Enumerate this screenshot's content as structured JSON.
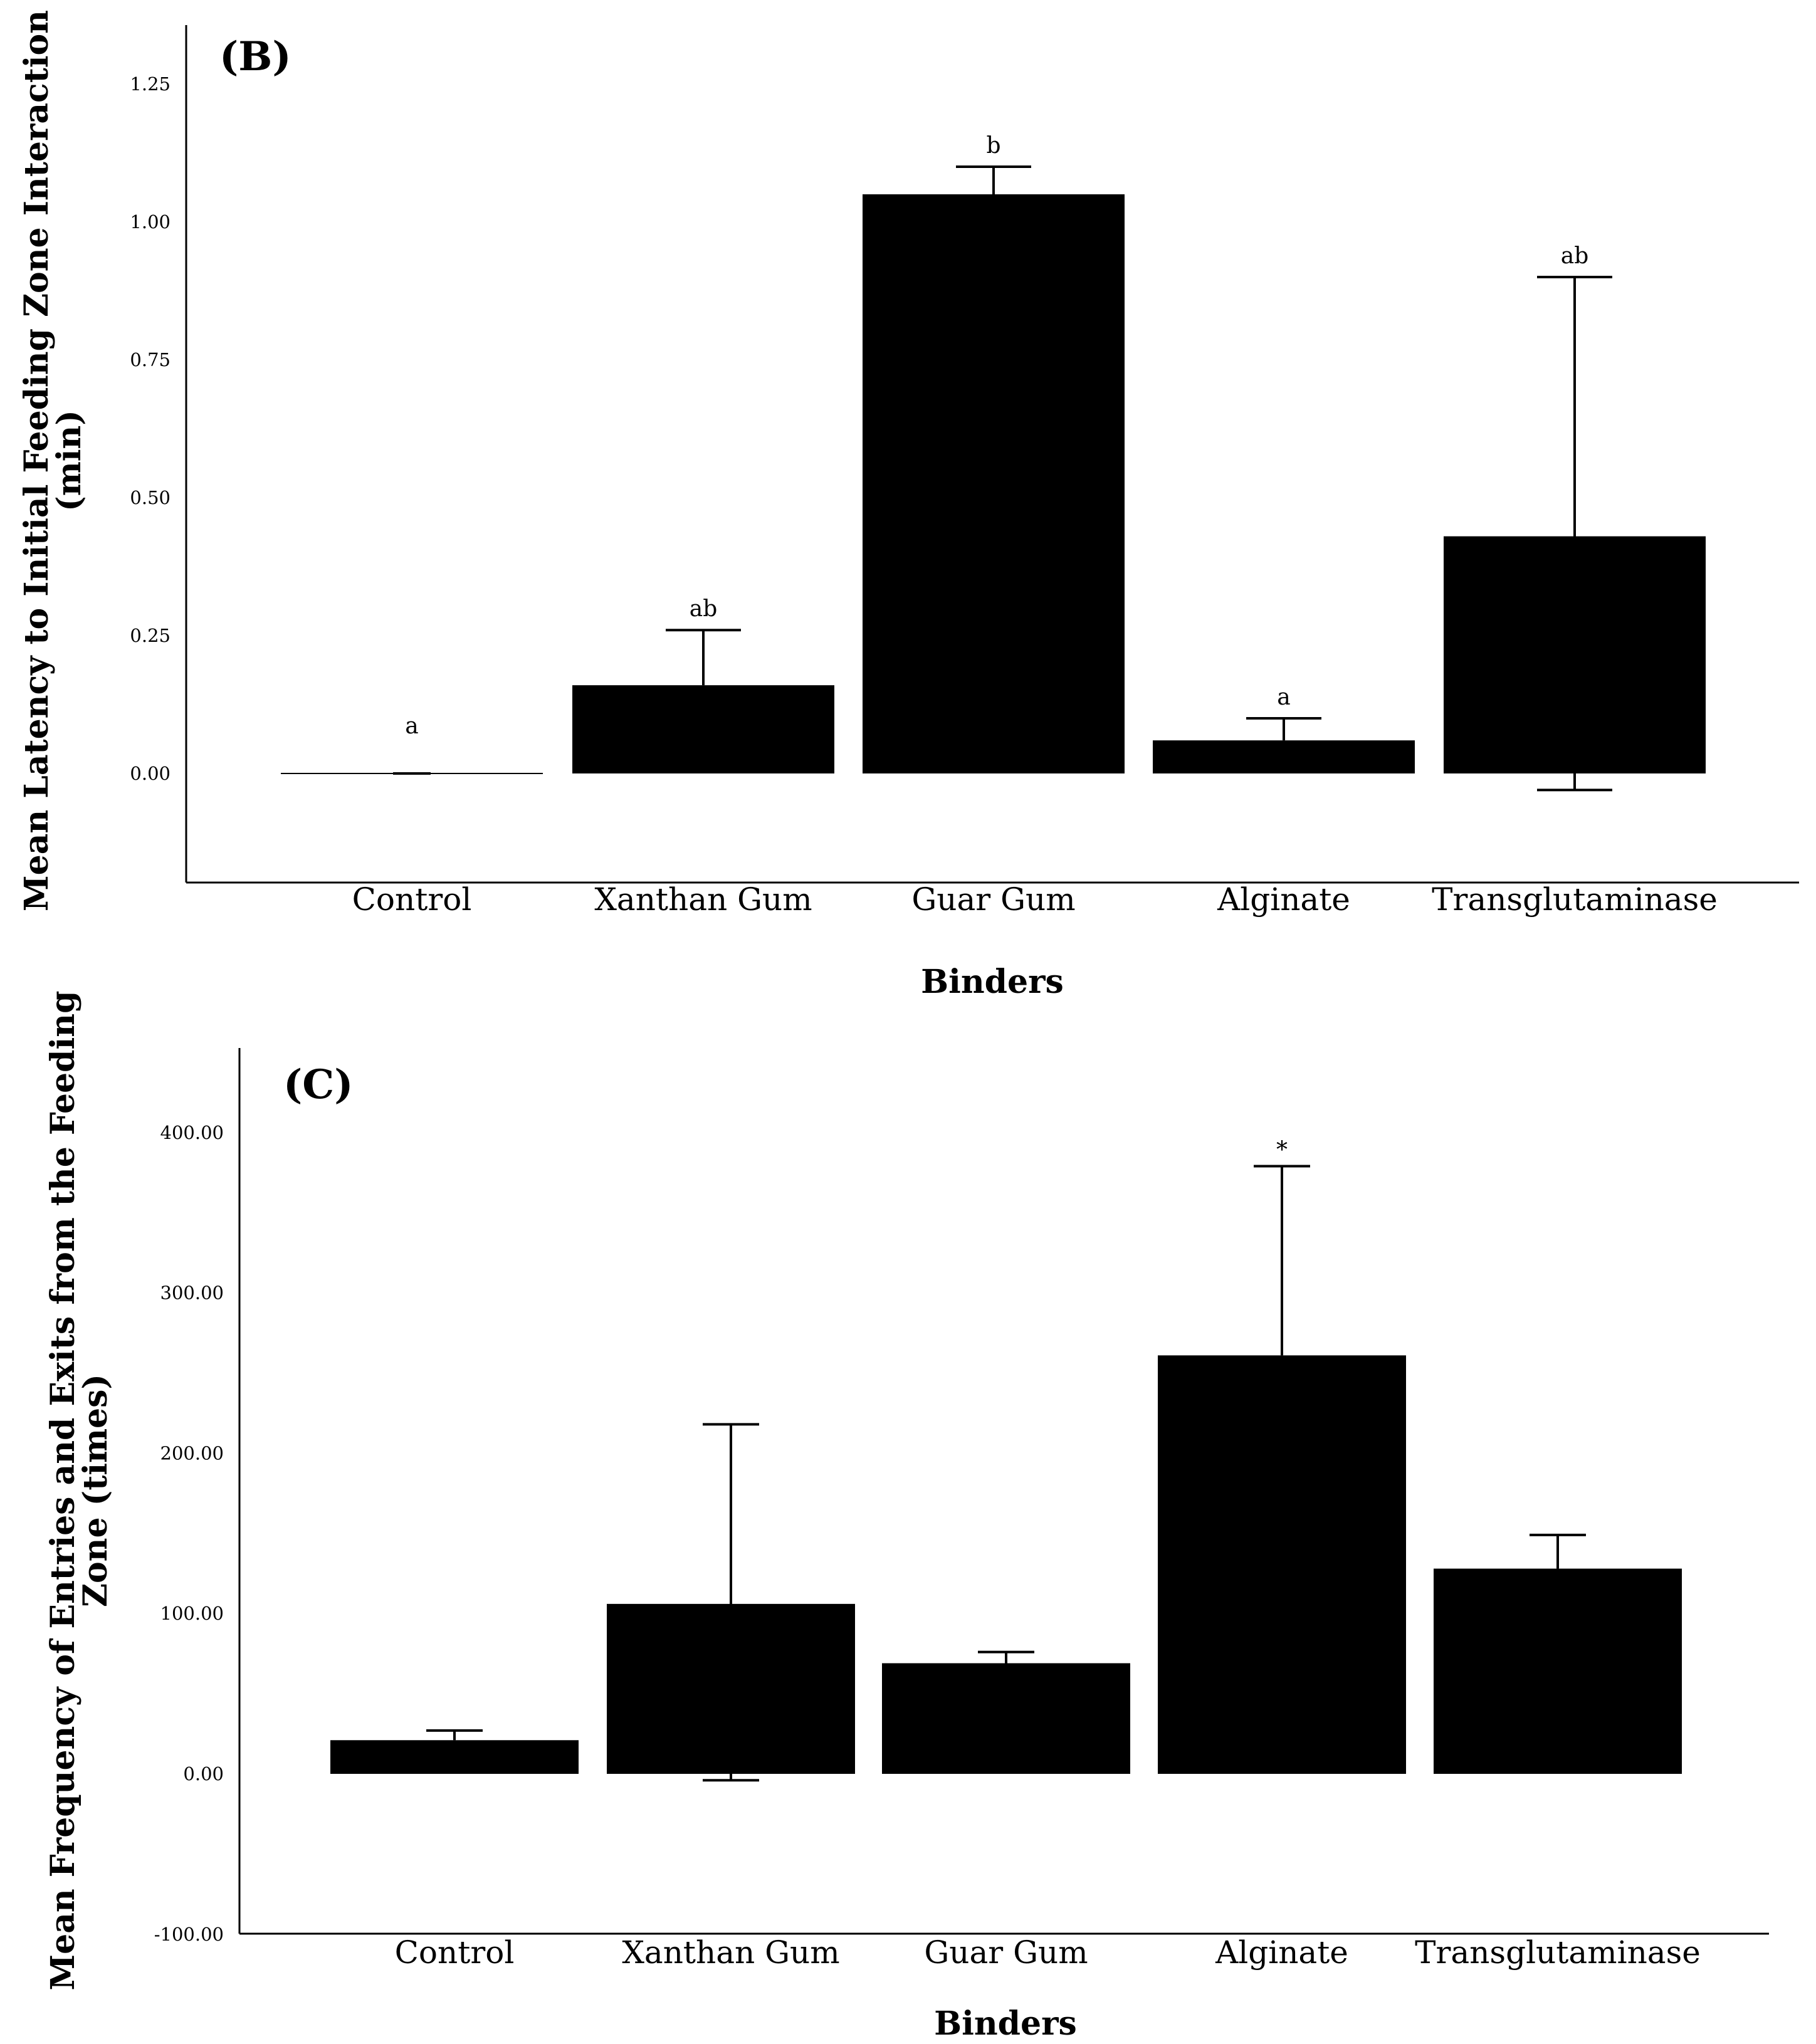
{
  "chart_data": [
    {
      "type": "bar",
      "panel": "(B)",
      "title": "",
      "xlabel": "Binders",
      "ylabel_lines": [
        "Mean Latency to Initial Feeding Zone Interaction",
        "(min)"
      ],
      "categories": [
        "Control",
        "Xanthan Gum",
        "Guar Gum",
        "Alginate",
        "Transglutaminase"
      ],
      "values": [
        0.0,
        0.16,
        1.05,
        0.06,
        0.43
      ],
      "error_upper": [
        0.0,
        0.26,
        1.1,
        0.1,
        0.9
      ],
      "error_lower": [
        0.0,
        0.16,
        1.05,
        0.06,
        -0.03
      ],
      "significance": [
        "a",
        "ab",
        "b",
        "a",
        "ab"
      ],
      "ylim": [
        -0.2,
        1.35
      ],
      "yticks": [
        0.0,
        0.25,
        0.5,
        0.75,
        1.0,
        1.25
      ],
      "ytick_labels": [
        "0.00",
        "0.25",
        "0.50",
        "0.75",
        "1.00",
        "1.25"
      ],
      "bar_color": "#000000",
      "grid": false
    },
    {
      "type": "bar",
      "panel": "(C)",
      "title": "",
      "xlabel": "Binders",
      "ylabel_lines": [
        "Mean Frequency of Entries and Exits from the Feeding",
        "Zone (times)"
      ],
      "categories": [
        "Control",
        "Xanthan Gum",
        "Guar Gum",
        "Alginate",
        "Transglutaminase"
      ],
      "values": [
        21,
        106,
        69,
        261,
        128
      ],
      "error_upper": [
        27,
        218,
        76,
        379,
        149
      ],
      "error_lower": [
        21,
        -4,
        69,
        261,
        128
      ],
      "significance": [
        "",
        "",
        "",
        "*",
        ""
      ],
      "ylim": [
        -100,
        450
      ],
      "yticks": [
        -100,
        0,
        100,
        200,
        300,
        400
      ],
      "ytick_labels": [
        "-100.00",
        "0.00",
        "100.00",
        "200.00",
        "300.00",
        "400.00"
      ],
      "bar_color": "#000000",
      "grid": false
    }
  ]
}
